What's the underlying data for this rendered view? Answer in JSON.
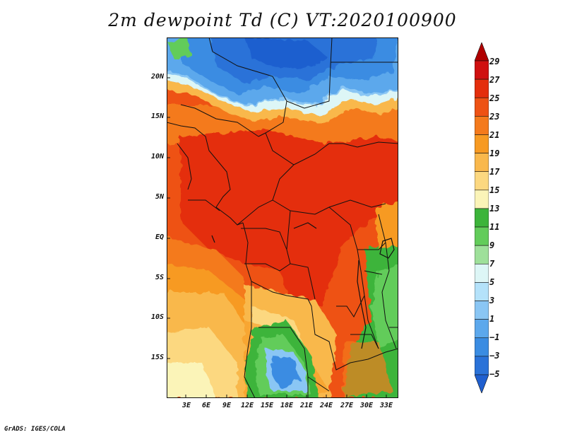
{
  "title": "2m dewpoint Td (C) VT:2020100900",
  "credit": "GrADS: IGES/COLA",
  "map": {
    "lat_ticks": [
      "20N",
      "15N",
      "10N",
      "5N",
      "EQ",
      "5S",
      "10S",
      "15S"
    ],
    "lon_ticks": [
      "3E",
      "6E",
      "9E",
      "12E",
      "15E",
      "18E",
      "21E",
      "24E",
      "27E",
      "30E",
      "33E"
    ]
  },
  "colorbar": {
    "labels": [
      "29",
      "27",
      "25",
      "23",
      "21",
      "19",
      "17",
      "15",
      "13",
      "11",
      "9",
      "7",
      "5",
      "3",
      "1",
      "−1",
      "−3",
      "−5"
    ],
    "colors": [
      "#b00000",
      "#d01010",
      "#e42e0c",
      "#ee5214",
      "#f47a1c",
      "#f79a22",
      "#f9b84c",
      "#fcd880",
      "#fbf4b8",
      "#3cb43a",
      "#62cc5a",
      "#9ee09a",
      "#ddf6f6",
      "#b4e2fa",
      "#8ac6f4",
      "#5ca8ec",
      "#3a8ce2",
      "#2a72d8",
      "#1f5fcf"
    ]
  }
}
